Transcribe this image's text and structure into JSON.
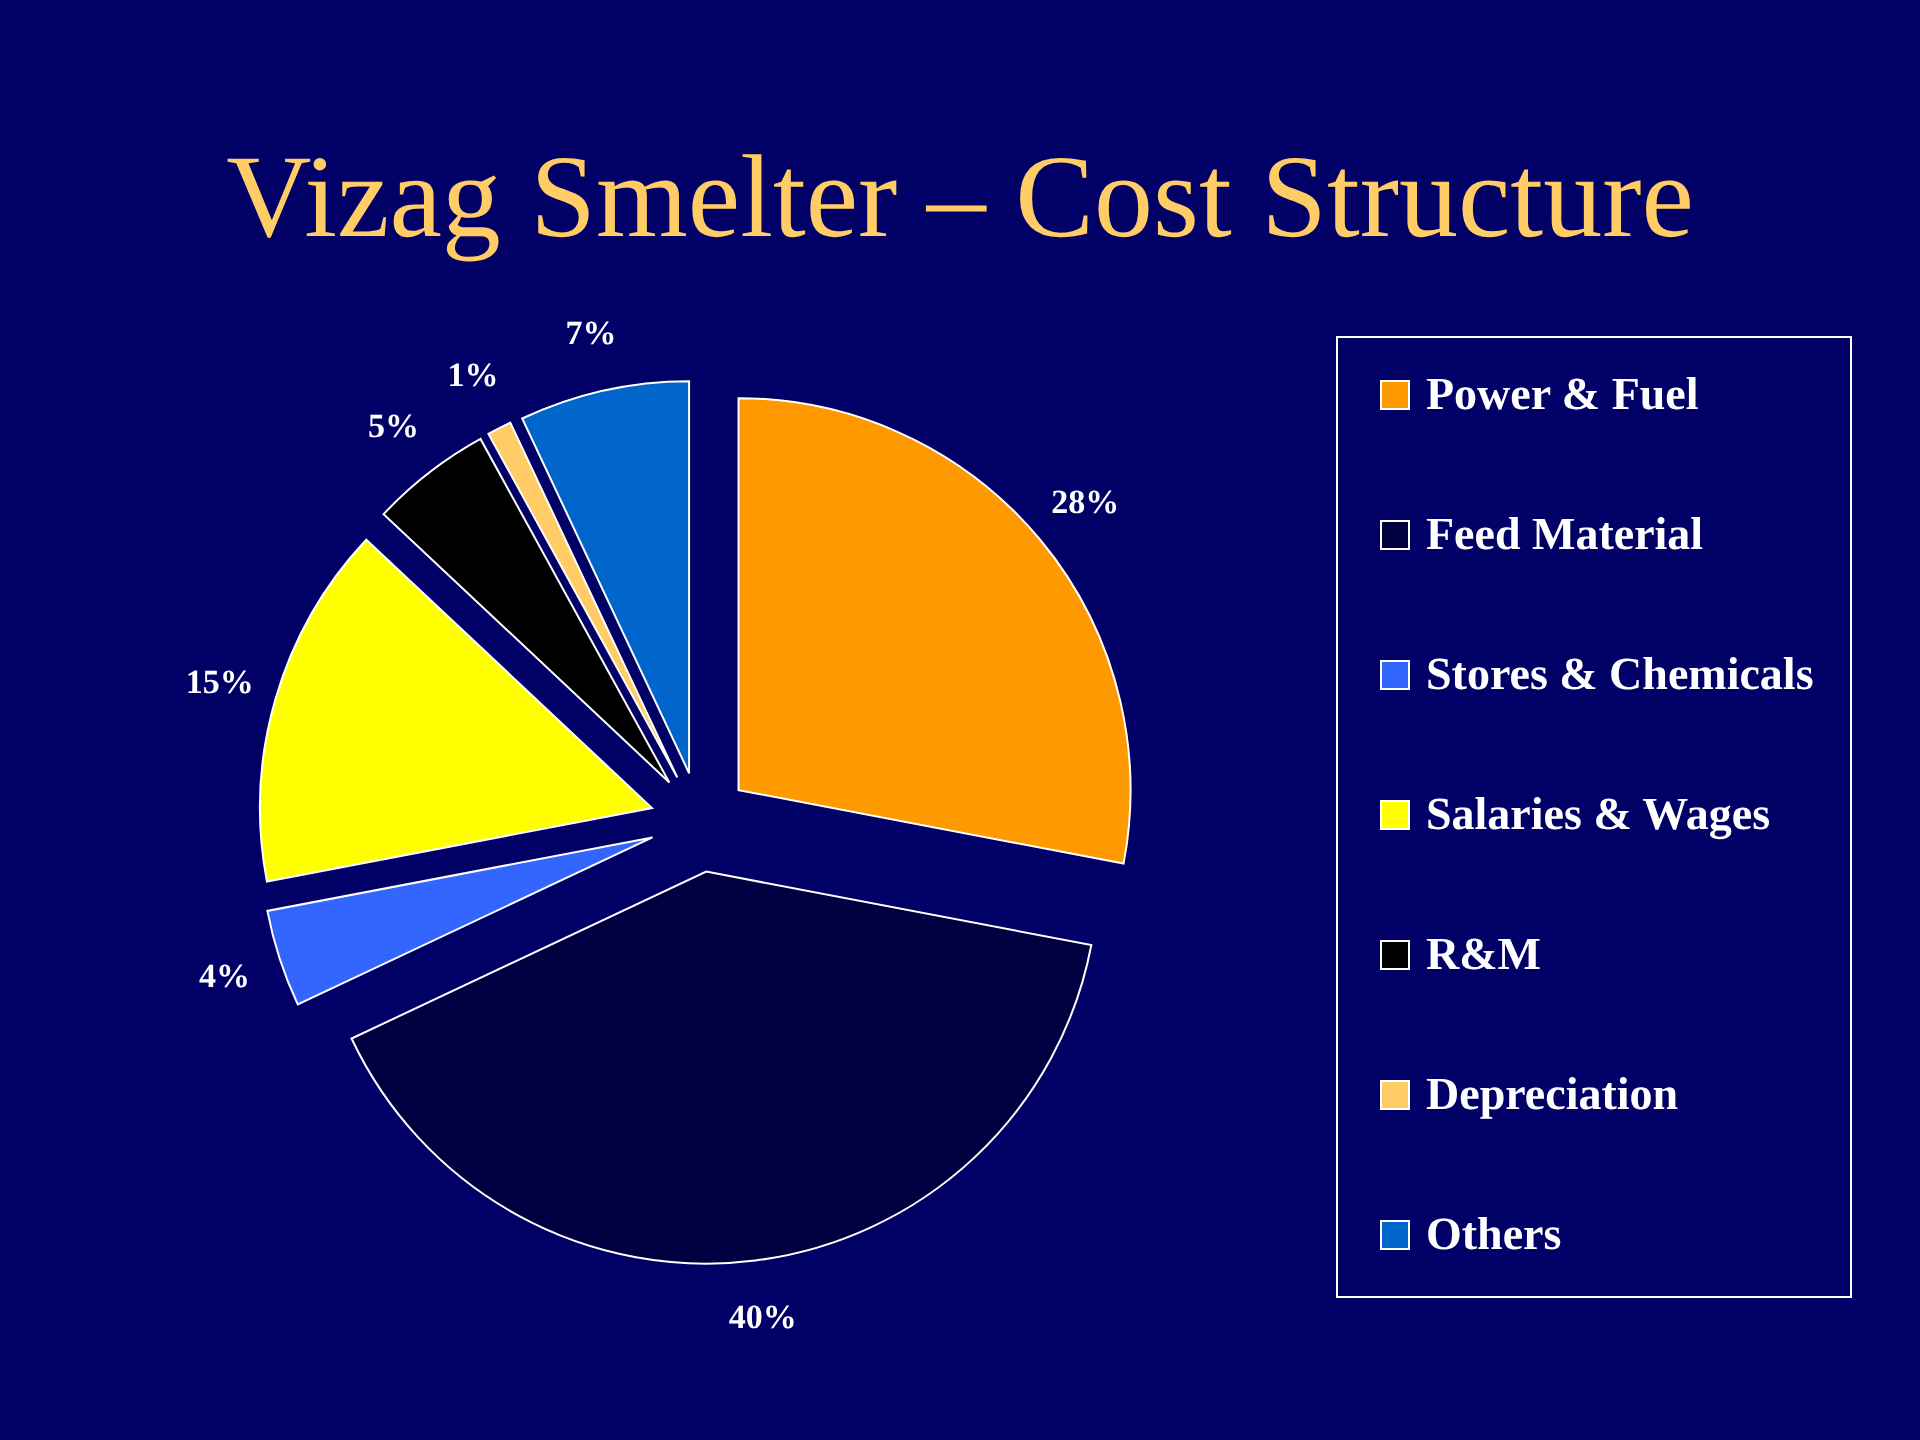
{
  "chart_data": {
    "type": "pie",
    "title": "Vizag Smelter – Cost Structure",
    "categories": [
      "Power & Fuel",
      "Feed Material",
      "Stores & Chemicals",
      "Salaries & Wages",
      "R&M",
      "Depreciation",
      "Others"
    ],
    "values": [
      28,
      40,
      4,
      15,
      5,
      1,
      7
    ],
    "colors": [
      "#ff9900",
      "#000040",
      "#3366ff",
      "#ffff00",
      "#000000",
      "#ffcc66",
      "#0066cc"
    ],
    "value_labels": [
      "28%",
      "40%",
      "4%",
      "15%",
      "5%",
      "1%",
      "7%"
    ],
    "legend": "right"
  }
}
